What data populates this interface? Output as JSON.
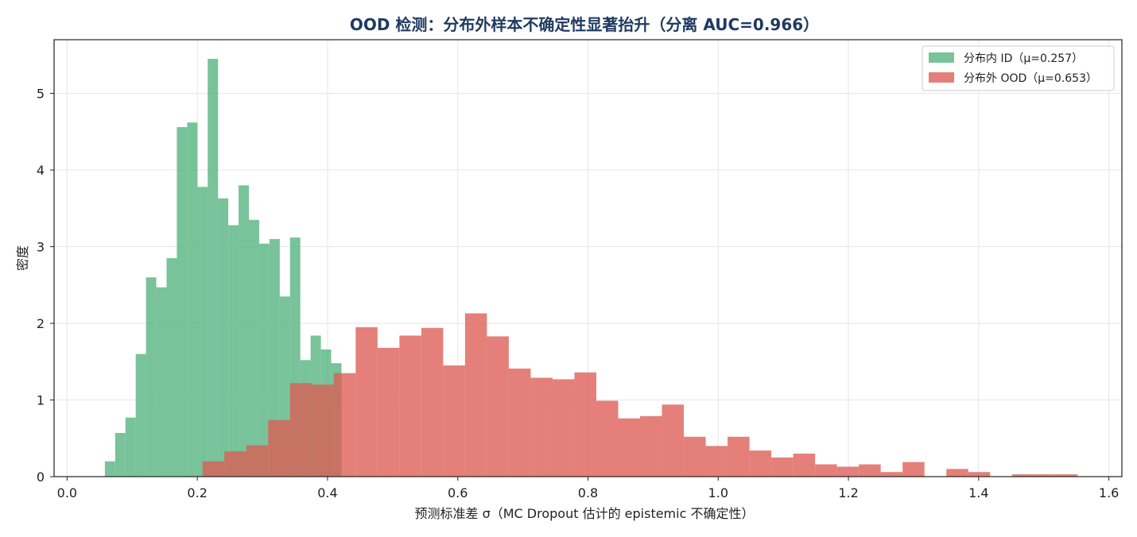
{
  "chart_data": {
    "type": "histogram",
    "title": "OOD 检测：分布外样本不确定性显著抬升（分离 AUC=0.966）",
    "xlabel": "预测标准差 σ（MC Dropout 估计的 epistemic 不确定性）",
    "ylabel": "密度",
    "xlim": [
      -0.02,
      1.62
    ],
    "ylim": [
      0,
      5.7
    ],
    "xticks": [
      "0.0",
      "0.2",
      "0.4",
      "0.6",
      "0.8",
      "1.0",
      "1.2",
      "1.4",
      "1.6"
    ],
    "yticks": [
      "0",
      "1",
      "2",
      "3",
      "4",
      "5"
    ],
    "grid": true,
    "legend_position": "top-right",
    "series": [
      {
        "name": "分布内 ID（μ=0.257）",
        "color": "#52b27e",
        "bin_start": 0.058,
        "bin_width": 0.0158,
        "values": [
          0.2,
          0.57,
          0.77,
          1.6,
          2.6,
          2.47,
          2.85,
          4.56,
          4.62,
          3.78,
          5.45,
          3.63,
          3.28,
          3.8,
          3.35,
          3.04,
          3.1,
          2.35,
          3.12,
          1.52,
          1.84,
          1.66,
          1.48
        ]
      },
      {
        "name": "分布外 OOD（μ=0.653）",
        "color": "#dd5c53",
        "bin_start": 0.208,
        "bin_width": 0.0336,
        "values": [
          0.2,
          0.33,
          0.41,
          0.74,
          1.22,
          1.2,
          1.35,
          1.95,
          1.68,
          1.84,
          1.94,
          1.45,
          2.13,
          1.83,
          1.41,
          1.29,
          1.27,
          1.36,
          0.99,
          0.76,
          0.79,
          0.94,
          0.52,
          0.4,
          0.52,
          0.34,
          0.25,
          0.3,
          0.16,
          0.13,
          0.16,
          0.06,
          0.19,
          0.0,
          0.1,
          0.06,
          0.0,
          0.03,
          0.03,
          0.03
        ]
      }
    ]
  }
}
